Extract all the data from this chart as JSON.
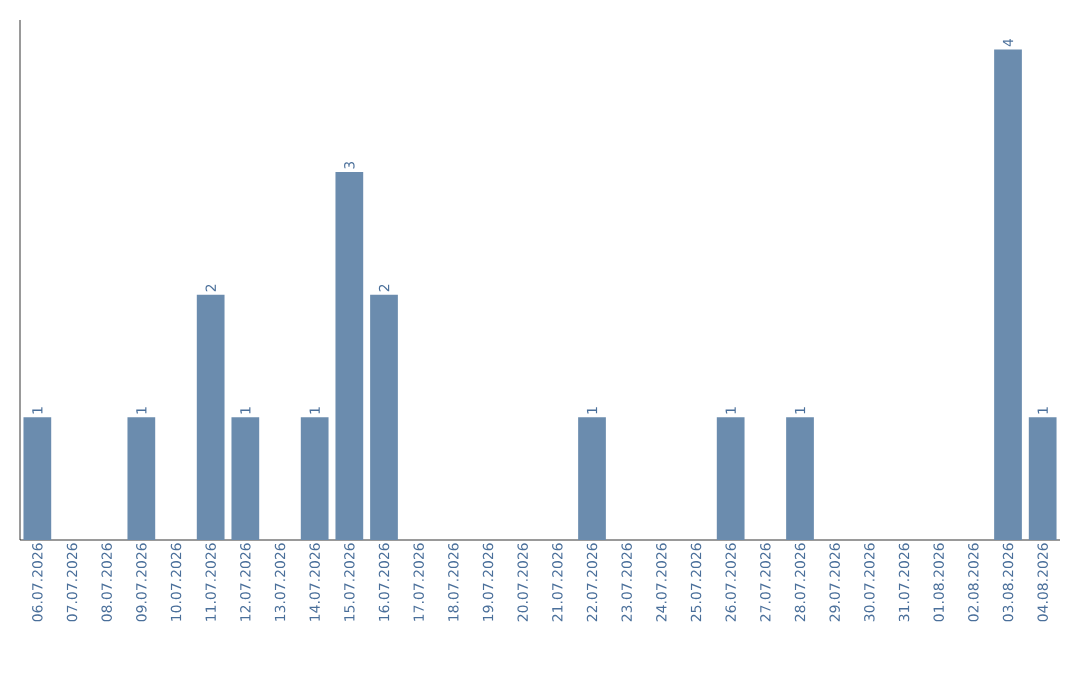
{
  "chart_data": {
    "type": "bar",
    "categories": [
      "06.07.2026",
      "07.07.2026",
      "08.07.2026",
      "09.07.2026",
      "10.07.2026",
      "11.07.2026",
      "12.07.2026",
      "13.07.2026",
      "14.07.2026",
      "15.07.2026",
      "16.07.2026",
      "17.07.2026",
      "18.07.2026",
      "19.07.2026",
      "20.07.2026",
      "21.07.2026",
      "22.07.2026",
      "23.07.2026",
      "24.07.2026",
      "25.07.2026",
      "26.07.2026",
      "27.07.2026",
      "28.07.2026",
      "29.07.2026",
      "30.07.2026",
      "31.07.2026",
      "01.08.2026",
      "02.08.2026",
      "03.08.2026",
      "04.08.2026"
    ],
    "values": [
      1,
      0,
      0,
      1,
      0,
      2,
      1,
      0,
      1,
      3,
      2,
      0,
      0,
      0,
      0,
      0,
      1,
      0,
      0,
      0,
      1,
      0,
      1,
      0,
      0,
      0,
      0,
      0,
      4,
      1
    ],
    "value_labels": [
      "1",
      null,
      null,
      "1",
      null,
      "2",
      "1",
      null,
      "1",
      "3",
      "2",
      null,
      null,
      null,
      null,
      null,
      "1",
      null,
      null,
      null,
      "1",
      null,
      "1",
      null,
      null,
      null,
      null,
      null,
      "4",
      "1"
    ],
    "color": "#6b8cae",
    "tick_labels": "x"
  }
}
